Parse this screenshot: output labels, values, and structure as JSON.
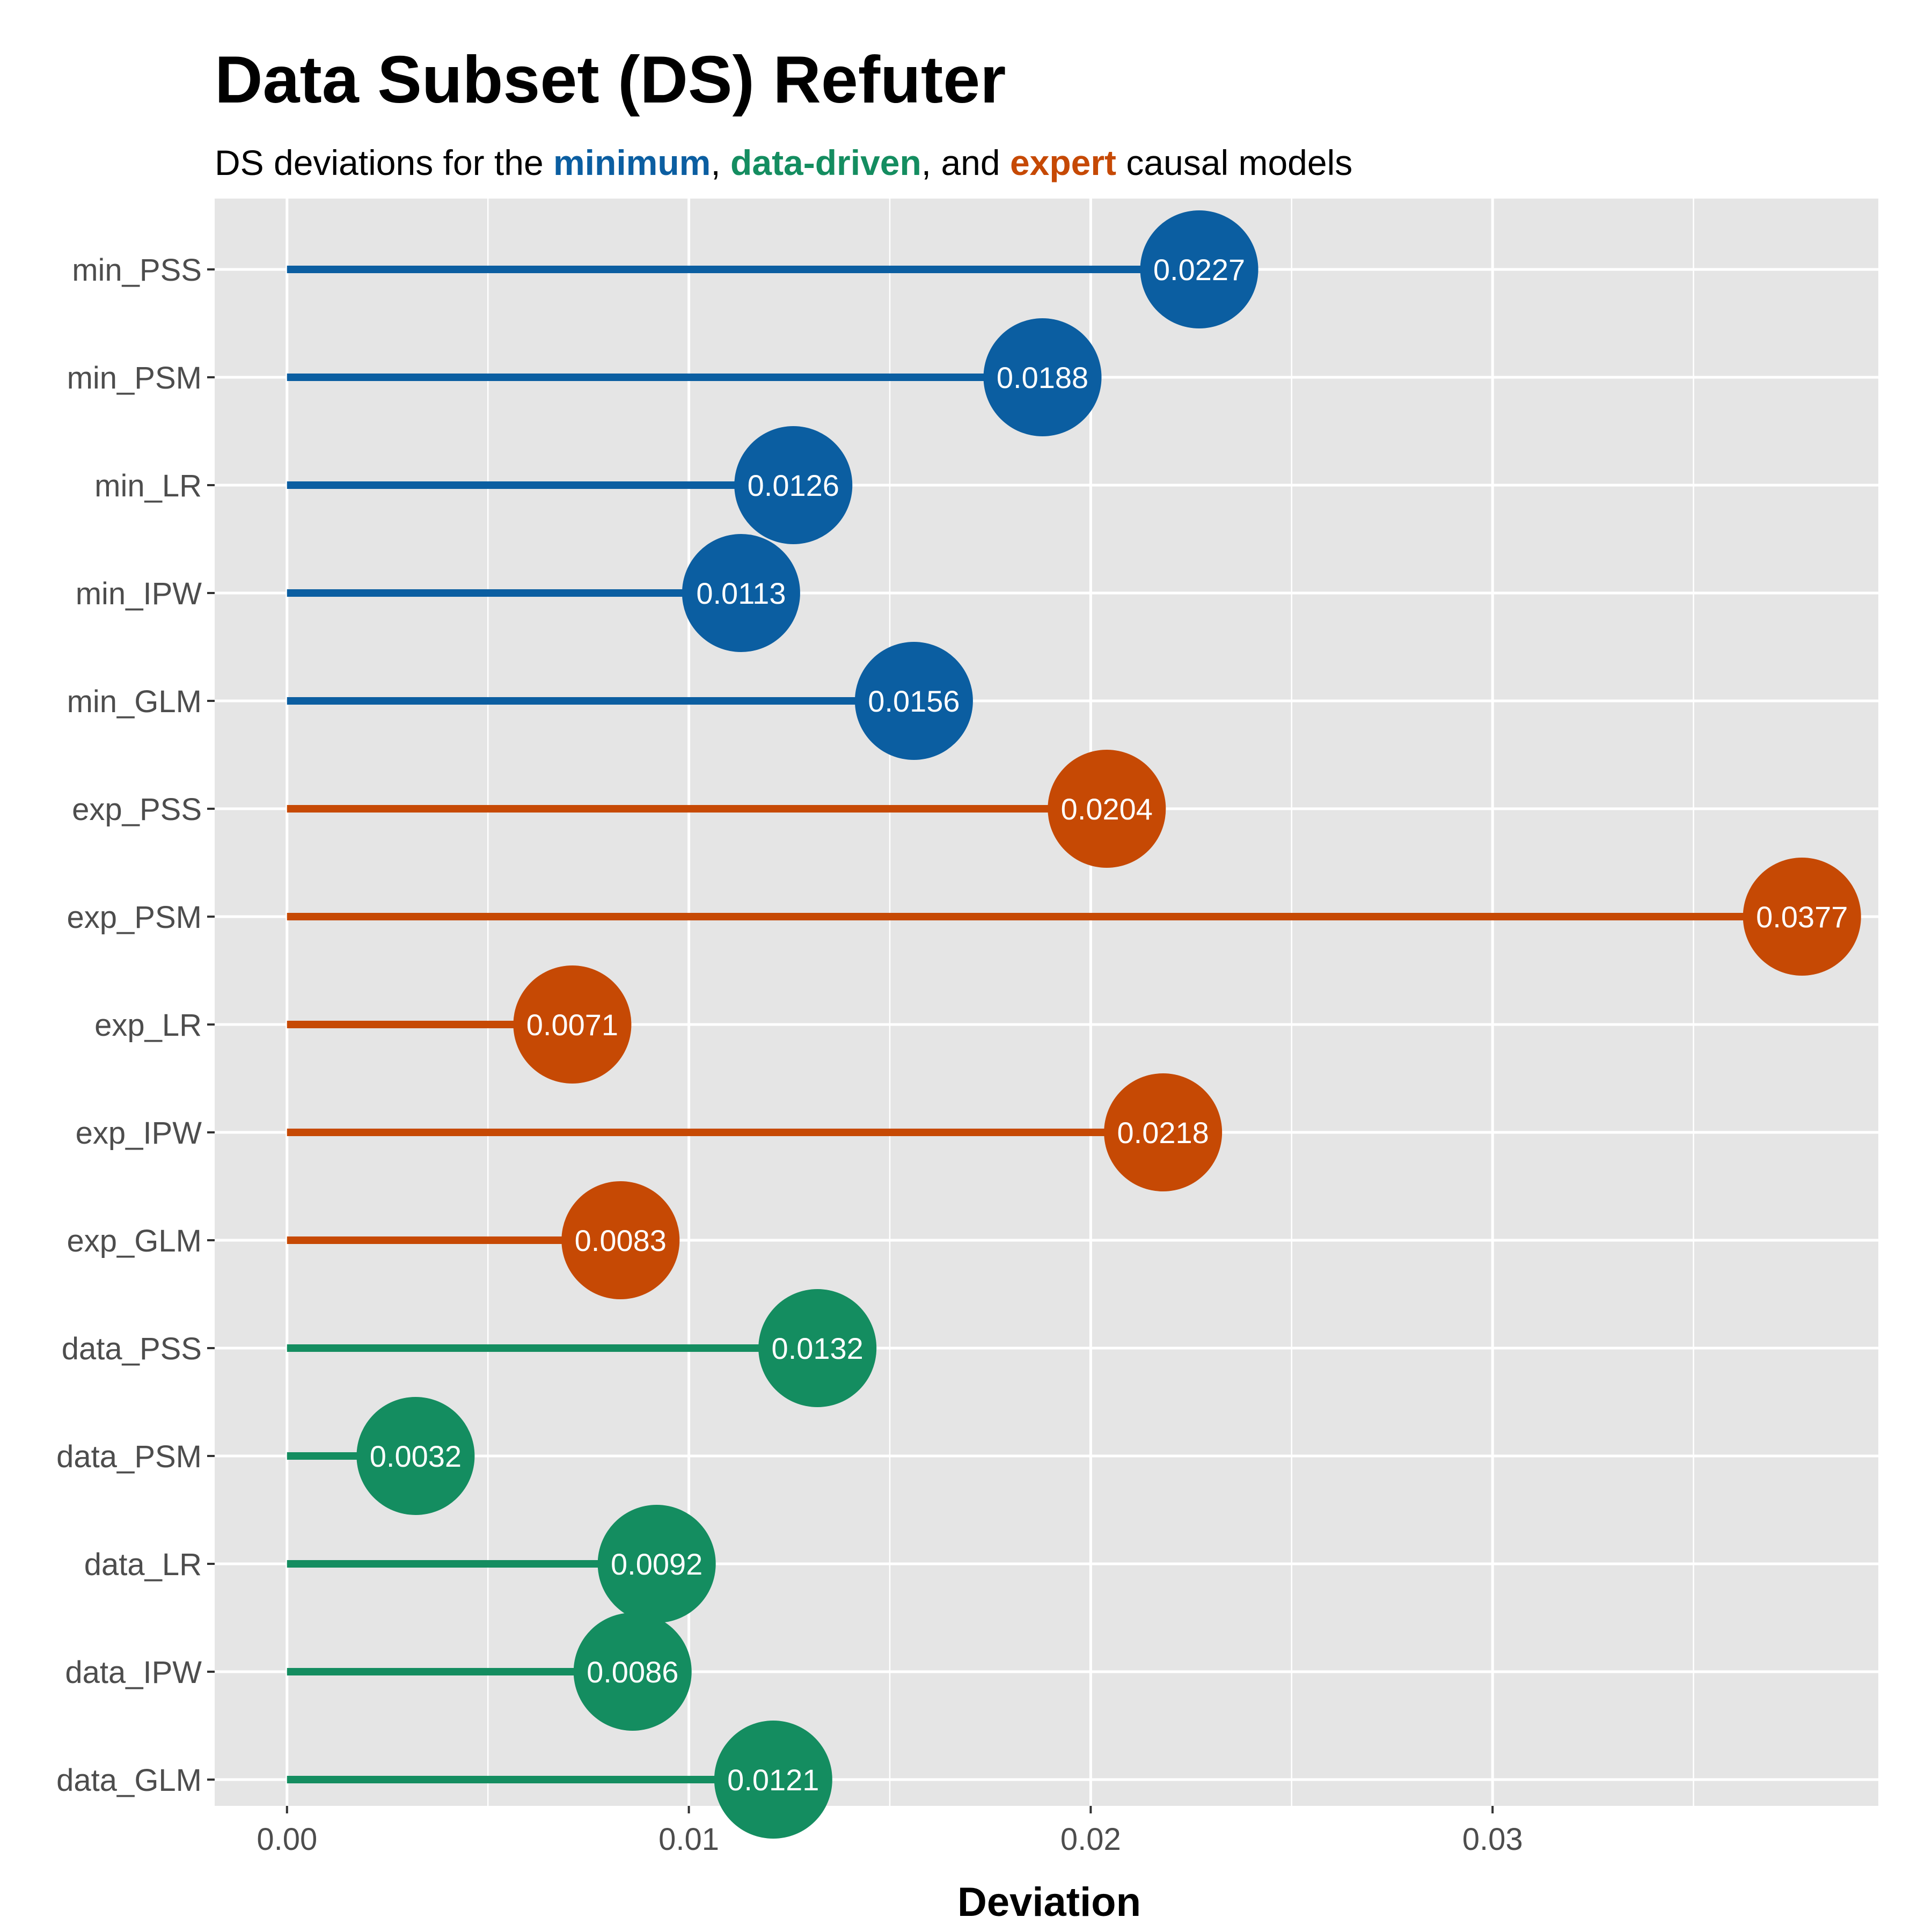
{
  "chart_data": {
    "type": "lollipop",
    "title": "Data Subset (DS) Refuter",
    "subtitle": {
      "prefix": "DS deviations for the ",
      "group_min": "minimum",
      "sep1": ", ",
      "group_data": "data-driven",
      "sep2": ", and ",
      "group_exp": "expert",
      "suffix": " causal models"
    },
    "xlabel": "Deviation",
    "ylabel": "",
    "xlim": [
      -0.0018,
      0.0396
    ],
    "x_ticks": [
      0.0,
      0.01,
      0.02,
      0.03
    ],
    "x_tick_labels": [
      "0.00",
      "0.01",
      "0.02",
      "0.03"
    ],
    "x_minor_ticks": [
      0.005,
      0.015,
      0.025,
      0.035
    ],
    "grid": true,
    "colors": {
      "min": "#0b5ea1",
      "exp": "#c64904",
      "data": "#148d60",
      "panel": "#e5e5e5",
      "grid": "#ffffff"
    },
    "items": [
      {
        "label": "min_PSS",
        "group": "min",
        "value": 0.0227,
        "value_label": "0.0227"
      },
      {
        "label": "min_PSM",
        "group": "min",
        "value": 0.0188,
        "value_label": "0.0188"
      },
      {
        "label": "min_LR",
        "group": "min",
        "value": 0.0126,
        "value_label": "0.0126"
      },
      {
        "label": "min_IPW",
        "group": "min",
        "value": 0.0113,
        "value_label": "0.0113"
      },
      {
        "label": "min_GLM",
        "group": "min",
        "value": 0.0156,
        "value_label": "0.0156"
      },
      {
        "label": "exp_PSS",
        "group": "exp",
        "value": 0.0204,
        "value_label": "0.0204"
      },
      {
        "label": "exp_PSM",
        "group": "exp",
        "value": 0.0377,
        "value_label": "0.0377"
      },
      {
        "label": "exp_LR",
        "group": "exp",
        "value": 0.0071,
        "value_label": "0.0071"
      },
      {
        "label": "exp_IPW",
        "group": "exp",
        "value": 0.0218,
        "value_label": "0.0218"
      },
      {
        "label": "exp_GLM",
        "group": "exp",
        "value": 0.0083,
        "value_label": "0.0083"
      },
      {
        "label": "data_PSS",
        "group": "data",
        "value": 0.0132,
        "value_label": "0.0132"
      },
      {
        "label": "data_PSM",
        "group": "data",
        "value": 0.0032,
        "value_label": "0.0032"
      },
      {
        "label": "data_LR",
        "group": "data",
        "value": 0.0092,
        "value_label": "0.0092"
      },
      {
        "label": "data_IPW",
        "group": "data",
        "value": 0.0086,
        "value_label": "0.0086"
      },
      {
        "label": "data_GLM",
        "group": "data",
        "value": 0.0121,
        "value_label": "0.0121"
      }
    ]
  }
}
